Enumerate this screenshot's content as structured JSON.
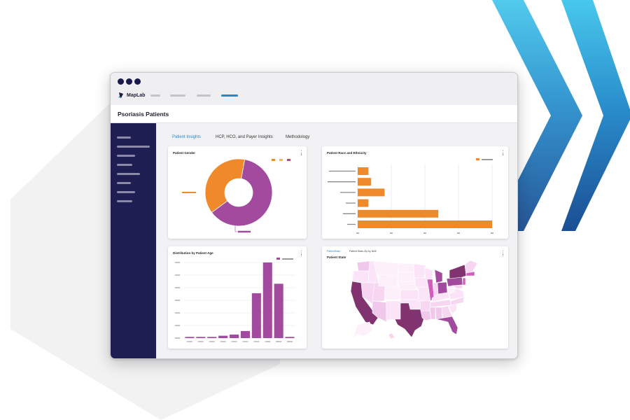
{
  "colors": {
    "sidebar": "#1e1e52",
    "accent": "#2b86c8",
    "orange": "#f0892a",
    "purple": "#a24a9e",
    "yellow": "#f2c230",
    "chevron_light": "#42bfe6",
    "chevron_dark": "#1b4e93"
  },
  "window": {
    "brand": "MapLab",
    "brand_icon": "maplab-logo-icon"
  },
  "page": {
    "title": "Psoriasis Patients"
  },
  "tabs": [
    {
      "label": "Patient Insights",
      "active": true
    },
    {
      "label": "HCP, HCO, and Payer Insights",
      "active": false
    },
    {
      "label": "Methodology",
      "active": false
    }
  ],
  "cards": {
    "gender": {
      "title": "Patient Gender"
    },
    "race": {
      "title": "Patient Race and Ethnicity"
    },
    "age": {
      "title": "Distribution by Patient Age"
    },
    "state": {
      "title": "Patient State",
      "subtabs": [
        "PatientState",
        "Patient State-Zip by NAE"
      ]
    }
  },
  "chart_data": [
    {
      "type": "pie",
      "title": "Patient Gender",
      "values": [
        0.62,
        0.38
      ],
      "colors": [
        "#a24a9e",
        "#f0892a"
      ]
    },
    {
      "type": "bar",
      "orientation": "horizontal",
      "title": "Patient Race and Ethnicity",
      "values": [
        4,
        5,
        10,
        4,
        30,
        50
      ],
      "xlim": [
        0,
        50
      ],
      "grid": true,
      "color": "#f0892a"
    },
    {
      "type": "bar",
      "title": "Distribution by Patient Age",
      "values": [
        1,
        1,
        1,
        2,
        3,
        6,
        38,
        64,
        46,
        1
      ],
      "ylim": [
        0,
        64
      ],
      "grid": true,
      "color": "#a24a9e"
    },
    {
      "type": "map",
      "title": "Patient State",
      "region": "United States",
      "highlighted_states": [
        "California",
        "Texas",
        "Florida",
        "New York",
        "Pennsylvania",
        "Michigan",
        "Ohio",
        "Illinois"
      ]
    }
  ]
}
